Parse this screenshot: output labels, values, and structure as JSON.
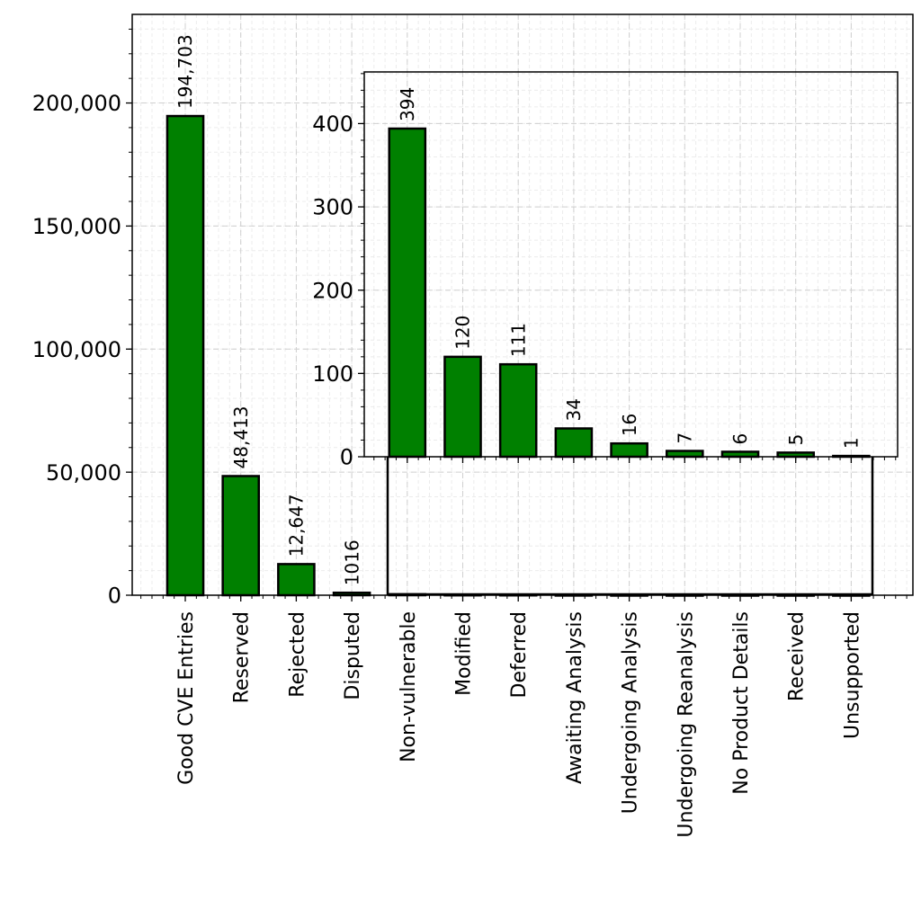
{
  "chart_data": [
    {
      "type": "bar",
      "title": "",
      "xlabel": "",
      "ylabel": "",
      "categories": [
        "Good CVE Entries",
        "Reserved",
        "Rejected",
        "Disputed",
        "Non-vulnerable",
        "Modified",
        "Deferred",
        "Awaiting Analysis",
        "Undergoing Analysis",
        "Undergoing Reanalysis",
        "No Product Details",
        "Received",
        "Unsupported"
      ],
      "values": [
        194703,
        48413,
        12647,
        1016,
        394,
        120,
        111,
        34,
        16,
        7,
        6,
        5,
        1
      ],
      "value_labels": [
        "194,703",
        "48,413",
        "12,647",
        "1016",
        "",
        "",
        "",
        "",
        "",
        "",
        "",
        "",
        ""
      ],
      "ylim": [
        0,
        236000
      ],
      "yticks": [
        0,
        50000,
        100000,
        150000,
        200000
      ],
      "ytick_labels": [
        "0",
        "50,000",
        "100,000",
        "150,000",
        "200,000"
      ],
      "grid": true,
      "bar_color": "#008000",
      "edge_color": "#000000"
    },
    {
      "type": "bar",
      "role": "inset",
      "categories": [
        "Non-vulnerable",
        "Modified",
        "Deferred",
        "Awaiting Analysis",
        "Undergoing Analysis",
        "Undergoing Reanalysis",
        "No Product Details",
        "Received",
        "Unsupported"
      ],
      "values": [
        394,
        120,
        111,
        34,
        16,
        7,
        6,
        5,
        1
      ],
      "value_labels": [
        "394",
        "120",
        "111",
        "34",
        "16",
        "7",
        "6",
        "5",
        "1"
      ],
      "ylim": [
        0,
        462
      ],
      "yticks": [
        0,
        100,
        200,
        300,
        400
      ],
      "ytick_labels": [
        "0",
        "100",
        "200",
        "300",
        "400"
      ],
      "grid": true,
      "bar_color": "#008000",
      "edge_color": "#000000"
    }
  ]
}
